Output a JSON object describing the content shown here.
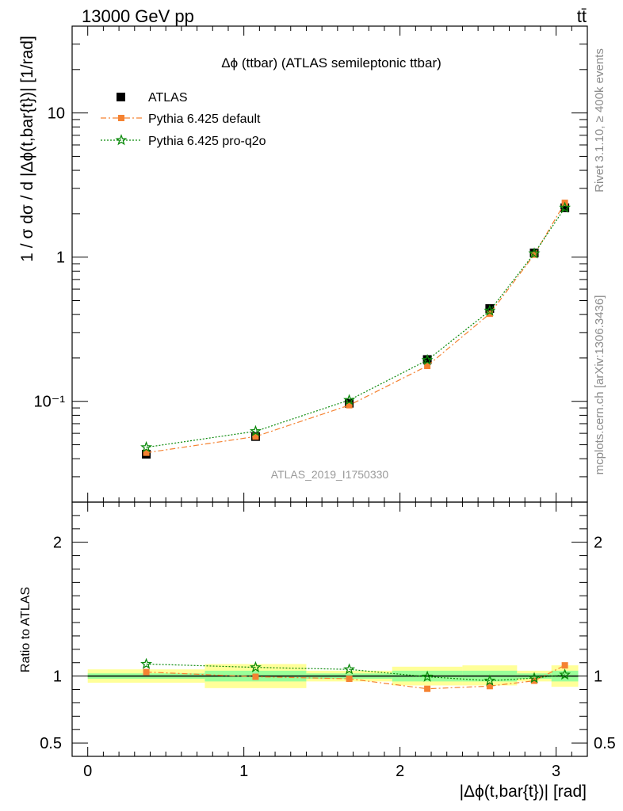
{
  "header": {
    "left_label": "13000 GeV pp",
    "right_label": "tt̄"
  },
  "side_labels": {
    "rivet": "Rivet 3.1.10, ≥ 400k events",
    "source": "mcplots.cern.ch [arXiv:1306.3436]"
  },
  "colors": {
    "data": "#000000",
    "default": "#f58231",
    "pro_q2o": "#0b8a0b",
    "band_outer": "#ffff99",
    "band_inner": "#99ff99"
  },
  "chart_data": [
    {
      "type": "line",
      "title": "Δϕ (ttbar) (ATLAS semileptonic ttbar)",
      "ylabel": "1 / σ dσ / d |Δϕ(t,bar{t})| [1/rad]",
      "watermark": "ATLAS_2019_I1750330",
      "yscale": "log",
      "xlim": [
        -0.1,
        3.2
      ],
      "ylim": [
        0.02,
        40
      ],
      "yticks": [
        {
          "value": 0.1,
          "label": "10⁻¹"
        },
        {
          "value": 1,
          "label": "1"
        },
        {
          "value": 10,
          "label": "10"
        }
      ],
      "legend_position": "top-left",
      "legend": [
        "ATLAS",
        "Pythia 6.425 default",
        "Pythia 6.425 pro-q2o"
      ],
      "bins": [
        [
          0,
          0.75
        ],
        [
          0.75,
          1.4
        ],
        [
          1.4,
          1.95
        ],
        [
          1.95,
          2.4
        ],
        [
          2.4,
          2.75
        ],
        [
          2.75,
          2.97
        ],
        [
          2.97,
          3.1416
        ]
      ],
      "x": [
        0.375,
        1.075,
        1.675,
        2.175,
        2.575,
        2.86,
        3.056
      ],
      "series": [
        {
          "name": "ATLAS",
          "style": "data",
          "values": [
            0.043,
            0.057,
            0.097,
            0.195,
            0.44,
            1.07,
            2.2
          ]
        },
        {
          "name": "Pythia 6.425 default",
          "style": "default",
          "values": [
            0.044,
            0.057,
            0.094,
            0.176,
            0.405,
            1.04,
            2.38
          ]
        },
        {
          "name": "Pythia 6.425 pro-q2o",
          "style": "pro_q2o",
          "values": [
            0.048,
            0.062,
            0.102,
            0.193,
            0.425,
            1.06,
            2.2
          ]
        }
      ]
    },
    {
      "type": "line",
      "ylabel": "Ratio to ATLAS",
      "xlabel": "|Δϕ(t,bar{t})| [rad]",
      "xlim": [
        -0.1,
        3.2
      ],
      "ylim": [
        0.4,
        2.3
      ],
      "xticks": [
        {
          "value": 0,
          "label": "0"
        },
        {
          "value": 1,
          "label": "1"
        },
        {
          "value": 2,
          "label": "2"
        },
        {
          "value": 3,
          "label": "3"
        }
      ],
      "yticks": [
        {
          "value": 0.5,
          "label": "0.5"
        },
        {
          "value": 1,
          "label": "1"
        },
        {
          "value": 2,
          "label": "2"
        }
      ],
      "reference_line": 1,
      "bins": [
        [
          0,
          0.75
        ],
        [
          0.75,
          1.4
        ],
        [
          1.4,
          1.95
        ],
        [
          1.95,
          2.4
        ],
        [
          2.4,
          2.75
        ],
        [
          2.75,
          2.97
        ],
        [
          2.97,
          3.1416
        ]
      ],
      "band_outer": [
        [
          0.95,
          1.05
        ],
        [
          0.91,
          1.09
        ],
        [
          0.96,
          1.04
        ],
        [
          0.93,
          1.07
        ],
        [
          0.93,
          1.08
        ],
        [
          0.96,
          1.04
        ],
        [
          0.92,
          1.08
        ]
      ],
      "band_inner": [
        [
          0.98,
          1.02
        ],
        [
          0.96,
          1.04
        ],
        [
          0.98,
          1.02
        ],
        [
          0.96,
          1.04
        ],
        [
          0.96,
          1.04
        ],
        [
          0.98,
          1.02
        ],
        [
          0.96,
          1.04
        ]
      ],
      "x": [
        0.375,
        1.075,
        1.675,
        2.175,
        2.575,
        2.86,
        3.056
      ],
      "series": [
        {
          "name": "Pythia 6.425 default",
          "style": "default",
          "values": [
            1.03,
            0.995,
            0.98,
            0.905,
            0.925,
            0.965,
            1.08
          ]
        },
        {
          "name": "Pythia 6.425 pro-q2o",
          "style": "pro_q2o",
          "values": [
            1.09,
            1.065,
            1.05,
            0.995,
            0.965,
            0.985,
            1.01
          ]
        }
      ]
    }
  ]
}
